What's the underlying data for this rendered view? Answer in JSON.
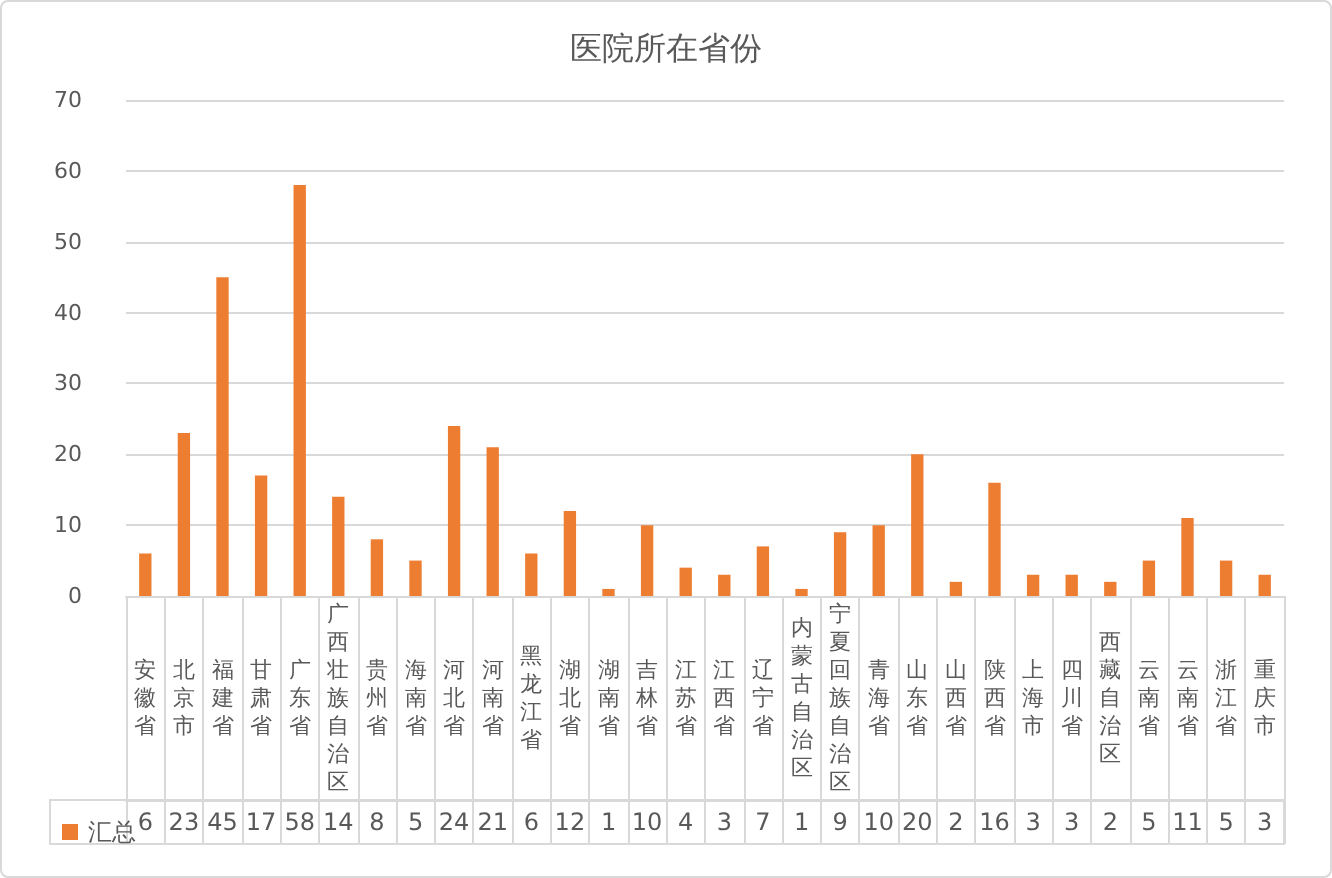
{
  "chart_data": {
    "type": "bar",
    "title": "医院所在省份",
    "categories": [
      "安徽省",
      "北京市",
      "福建省",
      "甘肃省",
      "广东省",
      "广西壮族自治区",
      "贵州省",
      "海南省",
      "河北省",
      "河南省",
      "黑龙江省",
      "湖北省",
      "湖南省",
      "吉林省",
      "江苏省",
      "江西省",
      "辽宁省",
      "内蒙古自治区",
      "宁夏回族自治区",
      "青海省",
      "山东省",
      "山西省",
      "陕西省",
      "上海市",
      "四川省",
      "西藏自治区",
      "云南省",
      "云南省",
      "浙江省",
      "重庆市"
    ],
    "series": [
      {
        "name": "汇总",
        "color": "#ed7d31",
        "values": [
          6,
          23,
          45,
          17,
          58,
          14,
          8,
          5,
          24,
          21,
          6,
          12,
          1,
          10,
          4,
          3,
          7,
          1,
          9,
          10,
          20,
          2,
          16,
          3,
          3,
          2,
          5,
          11,
          5,
          3
        ]
      }
    ],
    "ylim": [
      0,
      70
    ],
    "yticks": [
      0,
      10,
      20,
      30,
      40,
      50,
      60,
      70
    ],
    "grid": "y",
    "legend": "bottom left",
    "data_labels": true
  }
}
